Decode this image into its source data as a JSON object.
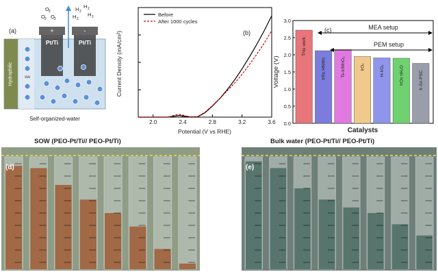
{
  "panel_a": {
    "label": "(a)",
    "electrode_left": "Pt/Ti",
    "electrode_right": "Pt/Ti",
    "sign_left": "+",
    "sign_right": "-",
    "o2_labels": [
      "O",
      "O",
      "O"
    ],
    "h2_labels": [
      "H",
      "H",
      "H",
      "H"
    ],
    "hydrophilic": "Hydrophilic",
    "sw": "sw",
    "caption": "Self-organized-water"
  },
  "panel_b": {
    "label": "(b)"
  },
  "panel_c": {
    "label": "(c)",
    "mea": "MEA setup",
    "pem": "PEM setup"
  },
  "panel_d": {
    "label": "(d)",
    "title": "SOW (PEO-Pt/Ti// PEO-Pt/Ti)",
    "water_levels": [
      0.92,
      0.9,
      0.75,
      0.62,
      0.5,
      0.38,
      0.18,
      0.05
    ]
  },
  "panel_e": {
    "label": "(e)",
    "title": "Bulk water (PEO-Pt/Ti// PEO-Pt/Ti)",
    "water_levels": [
      0.96,
      0.9,
      0.72,
      0.62,
      0.55,
      0.5,
      0.4,
      0.3
    ]
  },
  "colors": {
    "before": "#000000",
    "after": "#cc0000",
    "sow_water": "#a0603a",
    "bulk_water": "#4f6f66"
  },
  "chart_data": [
    {
      "type": "line",
      "title": "",
      "xlabel": "Potential (V vs RHE)",
      "ylabel": "Current Density (mA/cm²)",
      "xlim": [
        1.8,
        3.6
      ],
      "ylim": [
        0,
        200
      ],
      "xticks": [
        "2.0",
        "2.4",
        "2.8",
        "3.2",
        "3.6"
      ],
      "legend": "top-left",
      "series": [
        {
          "name": "Before",
          "color": "#000000",
          "dash": false,
          "x": [
            1.8,
            2.2,
            2.3,
            2.35,
            2.4,
            2.5,
            2.6,
            2.7,
            2.8,
            2.9,
            3.0,
            3.1,
            3.2,
            3.3,
            3.4,
            3.5,
            3.6
          ],
          "y": [
            0,
            0,
            2,
            3,
            2,
            0.5,
            0.5,
            8,
            20,
            34,
            50,
            68,
            88,
            110,
            133,
            158,
            185
          ]
        },
        {
          "name": "After 1000 cycles",
          "color": "#cc0000",
          "dash": true,
          "x": [
            1.8,
            2.2,
            2.3,
            2.35,
            2.4,
            2.5,
            2.6,
            2.7,
            2.8,
            2.9,
            3.0,
            3.1,
            3.2,
            3.3,
            3.4,
            3.5,
            3.6
          ],
          "y": [
            0,
            0,
            4,
            5,
            3.5,
            0.5,
            1,
            9,
            21,
            34,
            48,
            62,
            78,
            96,
            115,
            135,
            158
          ]
        }
      ]
    },
    {
      "type": "bar",
      "title": "",
      "xlabel": "Catalysts",
      "ylabel": "Voltage (V)",
      "ylim": [
        0,
        3.0
      ],
      "yticks": [
        "0.0",
        "0.5",
        "1.0",
        "1.5",
        "2.0",
        "2.5",
        "3.0"
      ],
      "categories": [
        "This work",
        "IrRu HNWs",
        "Ts-Ir/MnO₂",
        "IrOₓ",
        "H-IrOₓ",
        "IrOx nH₂O",
        "Ir-Sn PSC"
      ],
      "values": [
        2.72,
        2.12,
        2.15,
        1.95,
        1.91,
        1.9,
        1.75
      ],
      "colors": [
        "#e8757a",
        "#7b7cdc",
        "#e07ae0",
        "#f2c98c",
        "#8f95ea",
        "#6fd16f",
        "#9a9eaa"
      ]
    }
  ]
}
